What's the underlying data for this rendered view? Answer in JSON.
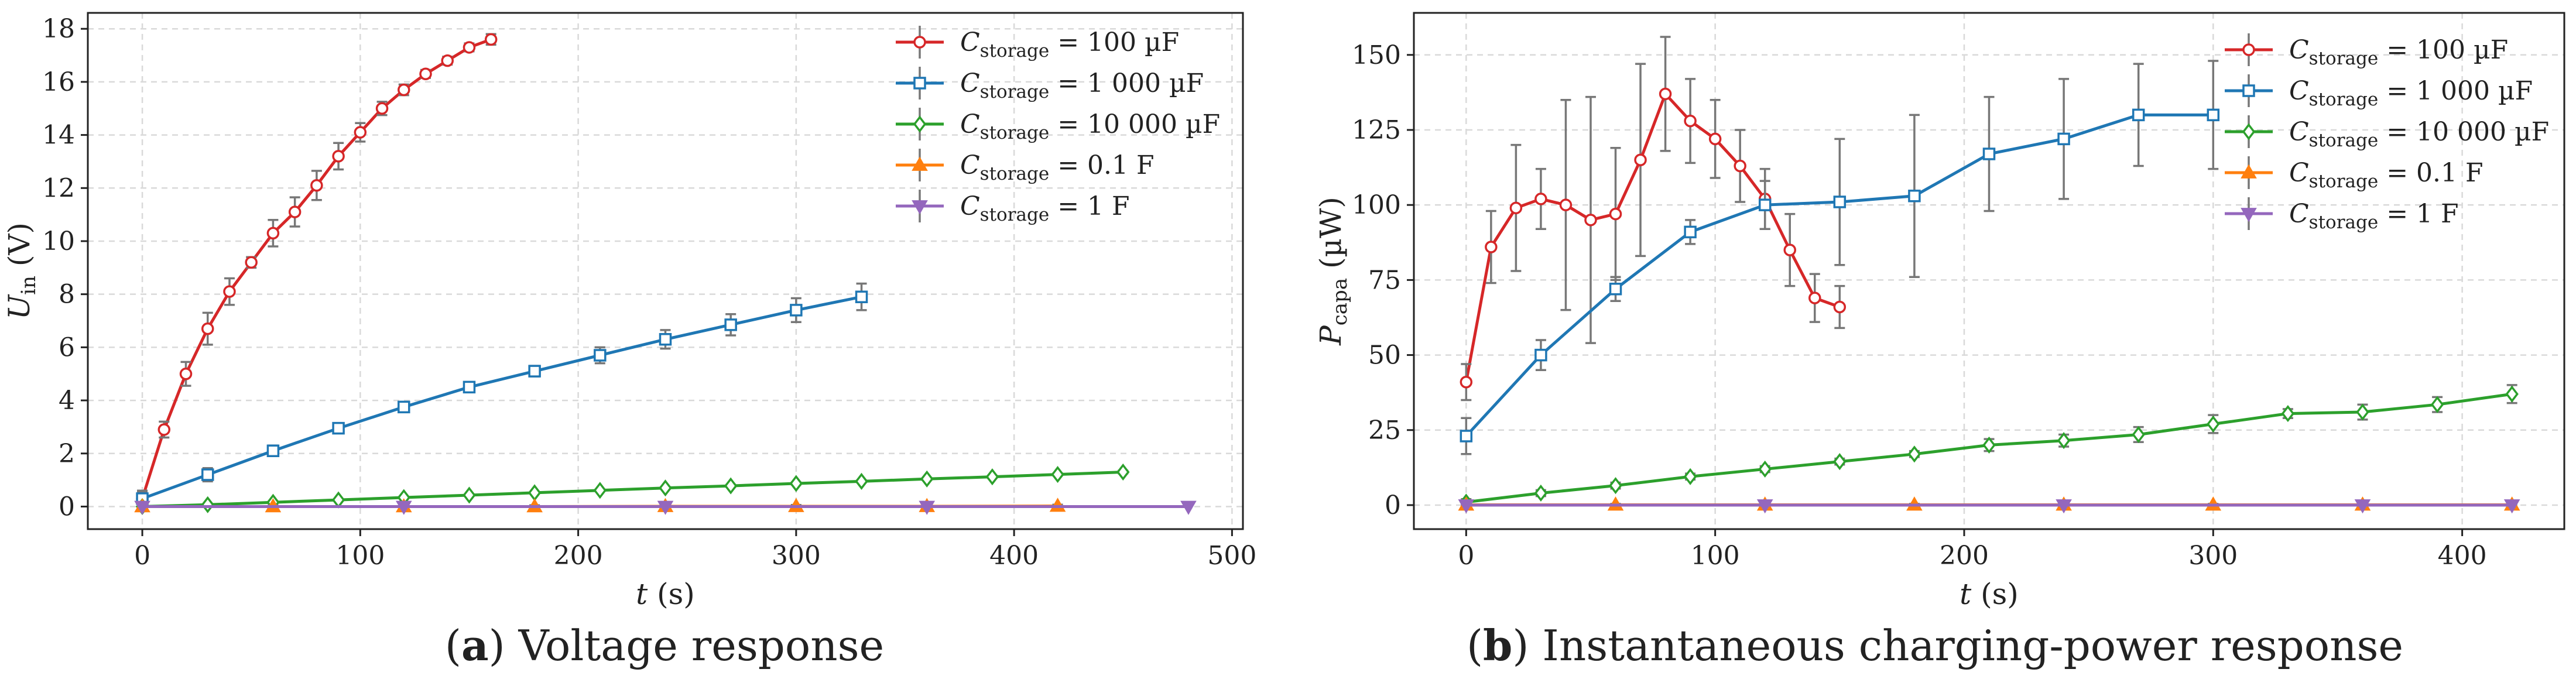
{
  "figure": {
    "captions": [
      {
        "letter": "a",
        "text": "Voltage response"
      },
      {
        "letter": "b",
        "text": "Instantaneous charging-power response"
      }
    ]
  },
  "chart_data": [
    {
      "type": "line",
      "title": "",
      "xlabel_var": "t",
      "xlabel_unit": "(s)",
      "ylabel_var": "U",
      "ylabel_sub": "in",
      "ylabel_unit": "(V)",
      "xlim": [
        -25,
        505
      ],
      "ylim": [
        -0.85,
        18.6
      ],
      "xticks": [
        0,
        100,
        200,
        300,
        400,
        500
      ],
      "yticks": [
        0,
        2,
        4,
        6,
        8,
        10,
        12,
        14,
        16,
        18
      ],
      "grid": true,
      "legend_position": "top-right",
      "series": [
        {
          "name": "C_storage = 100 µF",
          "legend_var": "C",
          "legend_sub": "storage",
          "legend_rhs": "= 100 µF",
          "color": "#d62728",
          "marker": "circle",
          "x": [
            0,
            10,
            20,
            30,
            40,
            50,
            60,
            70,
            80,
            90,
            100,
            110,
            120,
            130,
            140,
            150,
            160
          ],
          "y": [
            0.3,
            2.9,
            5.0,
            6.7,
            8.1,
            9.2,
            10.3,
            11.1,
            12.1,
            13.2,
            14.1,
            15.0,
            15.7,
            16.3,
            16.8,
            17.3,
            17.6
          ],
          "err": [
            0.25,
            0.3,
            0.45,
            0.6,
            0.5,
            0.2,
            0.5,
            0.55,
            0.55,
            0.5,
            0.35,
            0.25,
            0.2,
            0.15,
            0.15,
            0.15,
            0.2
          ]
        },
        {
          "name": "C_storage = 1 000 µF",
          "legend_var": "C",
          "legend_sub": "storage",
          "legend_rhs": "= 1 000 µF",
          "color": "#1f77b4",
          "marker": "square",
          "x": [
            0,
            30,
            60,
            90,
            120,
            150,
            180,
            210,
            240,
            270,
            300,
            330
          ],
          "y": [
            0.3,
            1.2,
            2.1,
            2.95,
            3.75,
            4.5,
            5.1,
            5.7,
            6.3,
            6.85,
            7.4,
            7.9
          ],
          "err": [
            0.3,
            0.25,
            0.2,
            0.15,
            0.15,
            0.15,
            0.2,
            0.3,
            0.35,
            0.4,
            0.45,
            0.5
          ]
        },
        {
          "name": "C_storage = 10 000 µF",
          "legend_var": "C",
          "legend_sub": "storage",
          "legend_rhs": "= 10 000 µF",
          "color": "#2ca02c",
          "marker": "diamond",
          "x": [
            0,
            30,
            60,
            90,
            120,
            150,
            180,
            210,
            240,
            270,
            300,
            330,
            360,
            390,
            420,
            450
          ],
          "y": [
            0.0,
            0.07,
            0.16,
            0.25,
            0.34,
            0.43,
            0.52,
            0.61,
            0.7,
            0.78,
            0.87,
            0.95,
            1.04,
            1.12,
            1.21,
            1.3
          ],
          "err": [
            0.03,
            0.03,
            0.03,
            0.03,
            0.03,
            0.03,
            0.03,
            0.03,
            0.04,
            0.04,
            0.04,
            0.04,
            0.04,
            0.04,
            0.04,
            0.05
          ]
        },
        {
          "name": "C_storage = 0.1 F",
          "legend_var": "C",
          "legend_sub": "storage",
          "legend_rhs": "= 0.1 F",
          "color": "#ff7f0e",
          "marker": "triangle-up",
          "x": [
            0,
            60,
            120,
            180,
            240,
            300,
            360,
            420
          ],
          "y": [
            0.0,
            0.0,
            0.0,
            0.0,
            0.01,
            0.01,
            0.01,
            0.02
          ],
          "err": [
            0.05,
            0.05,
            0.05,
            0.05,
            0.05,
            0.05,
            0.05,
            0.05
          ]
        },
        {
          "name": "C_storage = 1 F",
          "legend_var": "C",
          "legend_sub": "storage",
          "legend_rhs": "= 1 F",
          "color": "#9467bd",
          "marker": "triangle-down",
          "x": [
            0,
            120,
            240,
            360,
            480
          ],
          "y": [
            0.0,
            0.0,
            0.0,
            0.0,
            0.0
          ],
          "err": [
            0.0,
            0.0,
            0.0,
            0.0,
            0.0
          ]
        }
      ]
    },
    {
      "type": "line",
      "title": "",
      "xlabel_var": "t",
      "xlabel_unit": "(s)",
      "ylabel_var": "P",
      "ylabel_sub": "capa",
      "ylabel_unit": "(µW)",
      "xlim": [
        -21,
        441
      ],
      "ylim": [
        -8,
        164
      ],
      "xticks": [
        0,
        100,
        200,
        300,
        400
      ],
      "yticks": [
        0,
        25,
        50,
        75,
        100,
        125,
        150
      ],
      "grid": true,
      "legend_position": "top-right",
      "series": [
        {
          "name": "C_storage = 100 µF",
          "legend_var": "C",
          "legend_sub": "storage",
          "legend_rhs": "= 100 µF",
          "color": "#d62728",
          "marker": "circle",
          "x": [
            0,
            10,
            20,
            30,
            40,
            50,
            60,
            70,
            80,
            90,
            100,
            110,
            120,
            130,
            140,
            150
          ],
          "y": [
            41,
            86,
            99,
            102,
            100,
            95,
            97,
            115,
            137,
            128,
            122,
            113,
            102,
            85,
            69,
            66
          ],
          "err": [
            6,
            12,
            21,
            10,
            35,
            41,
            22,
            32,
            19,
            14,
            13,
            12,
            10,
            12,
            8,
            7
          ]
        },
        {
          "name": "C_storage = 1 000 µF",
          "legend_var": "C",
          "legend_sub": "storage",
          "legend_rhs": "= 1 000 µF",
          "color": "#1f77b4",
          "marker": "square",
          "x": [
            0,
            30,
            60,
            90,
            120,
            150,
            180,
            210,
            240,
            270,
            300
          ],
          "y": [
            23,
            50,
            72,
            91,
            100,
            101,
            103,
            117,
            122,
            130,
            130
          ],
          "err": [
            6,
            5,
            4,
            4,
            8,
            21,
            27,
            19,
            20,
            17,
            18
          ]
        },
        {
          "name": "C_storage = 10 000 µF",
          "legend_var": "C",
          "legend_sub": "storage",
          "legend_rhs": "= 10 000 µF",
          "color": "#2ca02c",
          "marker": "diamond",
          "x": [
            0,
            30,
            60,
            90,
            120,
            150,
            180,
            210,
            240,
            270,
            300,
            330,
            360,
            390,
            420
          ],
          "y": [
            1,
            4,
            6.5,
            9.5,
            12,
            14.5,
            17,
            20,
            21.5,
            23.5,
            27,
            30.5,
            31,
            33.5,
            37
          ],
          "err": [
            1,
            1,
            1,
            1,
            1,
            1,
            1,
            2,
            2,
            2.5,
            3,
            1.5,
            2.5,
            2.5,
            3
          ]
        },
        {
          "name": "C_storage = 0.1 F",
          "legend_var": "C",
          "legend_sub": "storage",
          "legend_rhs": "= 0.1 F",
          "color": "#ff7f0e",
          "marker": "triangle-up",
          "x": [
            0,
            60,
            120,
            180,
            240,
            300,
            360,
            420
          ],
          "y": [
            0.1,
            0.1,
            0.1,
            0.1,
            0.1,
            0.1,
            0.1,
            0.1
          ],
          "err": [
            0.3,
            0.3,
            0.3,
            0.3,
            0.3,
            0.3,
            0.3,
            0.3
          ]
        },
        {
          "name": "C_storage = 1 F",
          "legend_var": "C",
          "legend_sub": "storage",
          "legend_rhs": "= 1 F",
          "color": "#9467bd",
          "marker": "triangle-down",
          "x": [
            0,
            120,
            240,
            360,
            420
          ],
          "y": [
            0.0,
            0.0,
            0.0,
            0.0,
            0.0
          ],
          "err": [
            0.0,
            0.0,
            0.0,
            0.0,
            0.0
          ]
        }
      ]
    }
  ]
}
